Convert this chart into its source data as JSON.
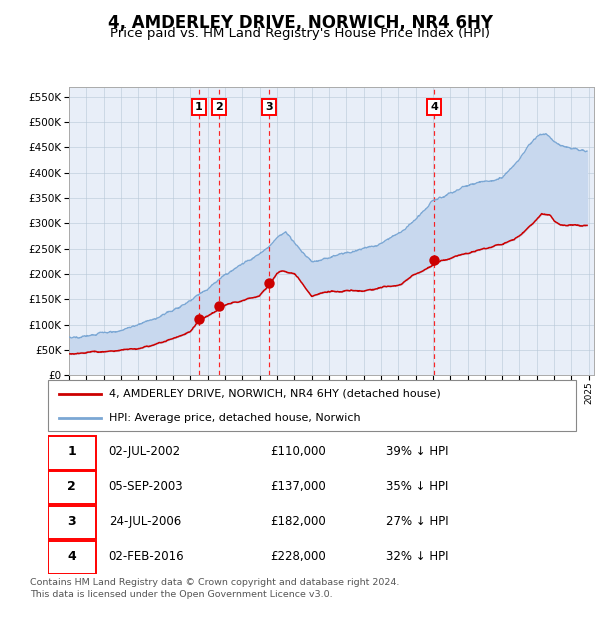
{
  "title": "4, AMDERLEY DRIVE, NORWICH, NR4 6HY",
  "subtitle": "Price paid vs. HM Land Registry's House Price Index (HPI)",
  "title_fontsize": 12,
  "subtitle_fontsize": 9.5,
  "background_color": "#ffffff",
  "plot_bg_color": "#e8eef8",
  "hpi_line_color": "#7ba7d4",
  "price_line_color": "#cc0000",
  "marker_color": "#cc0000",
  "transactions": [
    {
      "label": "1",
      "date_str": "02-JUL-2002",
      "price": 110000,
      "hpi_pct": "39% ↓ HPI",
      "x_year": 2002.5
    },
    {
      "label": "2",
      "date_str": "05-SEP-2003",
      "price": 137000,
      "hpi_pct": "35% ↓ HPI",
      "x_year": 2003.67
    },
    {
      "label": "3",
      "date_str": "24-JUL-2006",
      "price": 182000,
      "hpi_pct": "27% ↓ HPI",
      "x_year": 2006.56
    },
    {
      "label": "4",
      "date_str": "02-FEB-2016",
      "price": 228000,
      "hpi_pct": "32% ↓ HPI",
      "x_year": 2016.09
    }
  ],
  "ylim": [
    0,
    570000
  ],
  "xlim_start": 1995,
  "xlim_end": 2025.3,
  "ylabel_ticks": [
    0,
    50000,
    100000,
    150000,
    200000,
    250000,
    300000,
    350000,
    400000,
    450000,
    500000,
    550000
  ],
  "footer": "Contains HM Land Registry data © Crown copyright and database right 2024.\nThis data is licensed under the Open Government Licence v3.0.",
  "legend_house": "4, AMDERLEY DRIVE, NORWICH, NR4 6HY (detached house)",
  "legend_hpi": "HPI: Average price, detached house, Norwich"
}
